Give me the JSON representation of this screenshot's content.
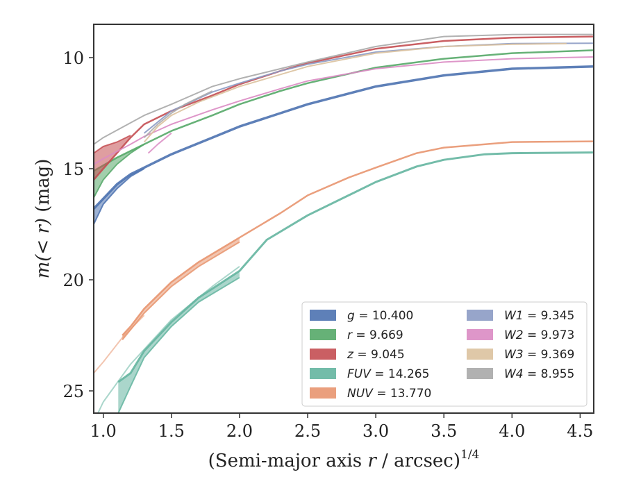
{
  "chart_data": {
    "type": "line",
    "title": "",
    "xlabel_prefix": "(Semi-major axis ",
    "xlabel_var": "r",
    "xlabel_mid": " / arcsec)",
    "xlabel_sup": "1/4",
    "ylabel_italic": "m(< r)",
    "ylabel_unit": " (mag)",
    "xlim": [
      0.93,
      4.6
    ],
    "ylim": [
      26.0,
      8.5
    ],
    "y_inverted": true,
    "xticks": [
      1.0,
      1.5,
      2.0,
      2.5,
      3.0,
      3.5,
      4.0,
      4.5
    ],
    "xtick_labels": [
      "1.0",
      "1.5",
      "2.0",
      "2.5",
      "3.0",
      "3.5",
      "4.0",
      "4.5"
    ],
    "yticks": [
      10,
      15,
      20,
      25
    ],
    "ytick_labels": [
      "10",
      "15",
      "20",
      "25"
    ],
    "grid": false,
    "legend_placement": "lower-right",
    "legend_columns": 2,
    "series": [
      {
        "name": "g",
        "label_value": " = 10.400",
        "color": "#4C72B0",
        "band": true,
        "x": [
          0.93,
          1.0,
          1.1,
          1.2,
          1.3,
          1.5,
          1.8,
          2.0,
          2.3,
          2.5,
          3.0,
          3.5,
          4.0,
          4.6
        ],
        "y": [
          16.8,
          16.35,
          15.7,
          15.25,
          14.95,
          14.35,
          13.6,
          13.1,
          12.5,
          12.1,
          11.3,
          10.8,
          10.5,
          10.4
        ],
        "x2": [
          0.93,
          1.0,
          1.1,
          1.2,
          1.3
        ],
        "y2": [
          17.5,
          16.6,
          15.9,
          15.35,
          15.0
        ],
        "width": 3.5
      },
      {
        "name": "r",
        "label_value": " = 9.669",
        "color": "#55A868",
        "band": true,
        "x": [
          0.93,
          1.0,
          1.1,
          1.2,
          1.3,
          1.5,
          1.8,
          2.0,
          2.3,
          2.5,
          3.0,
          3.5,
          4.0,
          4.6
        ],
        "y": [
          15.1,
          14.85,
          14.5,
          14.2,
          13.9,
          13.3,
          12.6,
          12.1,
          11.5,
          11.15,
          10.45,
          10.05,
          9.8,
          9.67
        ],
        "x2": [
          0.93,
          1.0,
          1.1,
          1.2,
          1.3
        ],
        "y2": [
          16.3,
          15.5,
          14.8,
          14.3,
          13.9
        ],
        "width": 2.5
      },
      {
        "name": "z",
        "label_value": " = 9.045",
        "color": "#C44E52",
        "band": true,
        "x": [
          0.93,
          1.0,
          1.1,
          1.2,
          1.3,
          1.5,
          1.8,
          2.0,
          2.3,
          2.5,
          3.0,
          3.5,
          4.0,
          4.6
        ],
        "y": [
          15.5,
          15.0,
          14.3,
          13.6,
          13.0,
          12.4,
          11.7,
          11.2,
          10.6,
          10.25,
          9.6,
          9.25,
          9.1,
          9.05
        ],
        "x2": [
          0.93,
          1.0,
          1.1,
          1.2
        ],
        "y2": [
          14.3,
          14.0,
          13.8,
          13.5
        ],
        "width": 2.5
      },
      {
        "name": "FUV",
        "label_value": " = 14.265",
        "color": "#64B5A0",
        "band": true,
        "x": [
          1.11,
          1.2,
          1.3,
          1.5,
          1.7,
          2.0,
          2.2,
          2.5,
          2.8,
          3.0,
          3.3,
          3.5,
          3.8,
          4.0,
          4.6
        ],
        "y": [
          24.6,
          24.2,
          23.2,
          21.9,
          20.8,
          19.6,
          18.2,
          17.1,
          16.2,
          15.6,
          14.9,
          14.6,
          14.35,
          14.3,
          14.27
        ],
        "x2": [
          1.11,
          1.2,
          1.3,
          1.5,
          1.7,
          2.0
        ],
        "y2": [
          26.0,
          24.8,
          23.5,
          22.1,
          21.0,
          19.9
        ],
        "extra_x": [
          0.93,
          1.0,
          1.2,
          1.5,
          1.8,
          2.0
        ],
        "extra_y": [
          26.4,
          25.5,
          23.8,
          21.8,
          20.3,
          19.4
        ],
        "width": 3
      },
      {
        "name": "NUV",
        "label_value": " = 13.770",
        "color": "#E8956F",
        "band": true,
        "x": [
          1.14,
          1.2,
          1.3,
          1.5,
          1.7,
          2.0,
          2.3,
          2.5,
          2.8,
          3.0,
          3.3,
          3.5,
          4.0,
          4.6
        ],
        "y": [
          22.5,
          22.1,
          21.3,
          20.1,
          19.2,
          18.1,
          17.0,
          16.2,
          15.4,
          14.95,
          14.3,
          14.05,
          13.8,
          13.77
        ],
        "x2": [
          1.14,
          1.3,
          1.5,
          1.7,
          2.0
        ],
        "y2": [
          22.7,
          21.5,
          20.3,
          19.4,
          18.3
        ],
        "extra_x": [
          0.93,
          1.0,
          1.14,
          1.3
        ],
        "extra_y": [
          24.2,
          23.7,
          22.6,
          21.6
        ],
        "width": 2.5
      },
      {
        "name": "W1",
        "label_value": " = 9.345",
        "color": "#8C9BC4",
        "band": false,
        "x": [
          1.3,
          1.5,
          1.8,
          2.0,
          2.3,
          2.5,
          3.0,
          3.5,
          4.0,
          4.6
        ],
        "y": [
          13.4,
          12.4,
          11.55,
          11.15,
          10.6,
          10.3,
          9.75,
          9.5,
          9.37,
          9.35
        ],
        "width": 2
      },
      {
        "name": "W2",
        "label_value": " = 9.973",
        "color": "#DA8BC3",
        "band": false,
        "x": [
          0.93,
          1.0,
          1.2,
          1.3,
          1.5,
          1.8,
          2.0,
          2.3,
          2.5,
          3.0,
          3.5,
          4.0,
          4.6
        ],
        "y": [
          14.8,
          14.55,
          13.9,
          13.55,
          13.0,
          12.35,
          11.95,
          11.4,
          11.05,
          10.5,
          10.2,
          10.05,
          9.97
        ],
        "x2": [
          1.33,
          1.4,
          1.5
        ],
        "y2": [
          14.3,
          13.9,
          13.4
        ],
        "width": 2
      },
      {
        "name": "W3",
        "label_value": " = 9.369",
        "color": "#DCC29E",
        "band": false,
        "x": [
          1.3,
          1.4,
          1.5,
          1.7,
          2.0,
          2.5,
          3.0,
          3.5,
          4.0,
          4.4
        ],
        "y": [
          13.8,
          13.1,
          12.6,
          12.0,
          11.3,
          10.4,
          9.8,
          9.5,
          9.4,
          9.37
        ],
        "width": 2
      },
      {
        "name": "W4",
        "label_value": " = 8.955",
        "color": "#A8A8A8",
        "band": false,
        "x": [
          0.93,
          1.0,
          1.3,
          1.5,
          1.8,
          2.0,
          2.5,
          3.0,
          3.5,
          4.0,
          4.6
        ],
        "y": [
          13.9,
          13.6,
          12.6,
          12.1,
          11.3,
          10.95,
          10.2,
          9.5,
          9.05,
          8.96,
          8.955
        ],
        "x2": [
          1.3,
          1.4,
          1.5,
          1.6,
          1.8
        ],
        "y2": [
          13.6,
          13.0,
          12.5,
          12.1,
          11.5
        ],
        "width": 2
      }
    ]
  }
}
